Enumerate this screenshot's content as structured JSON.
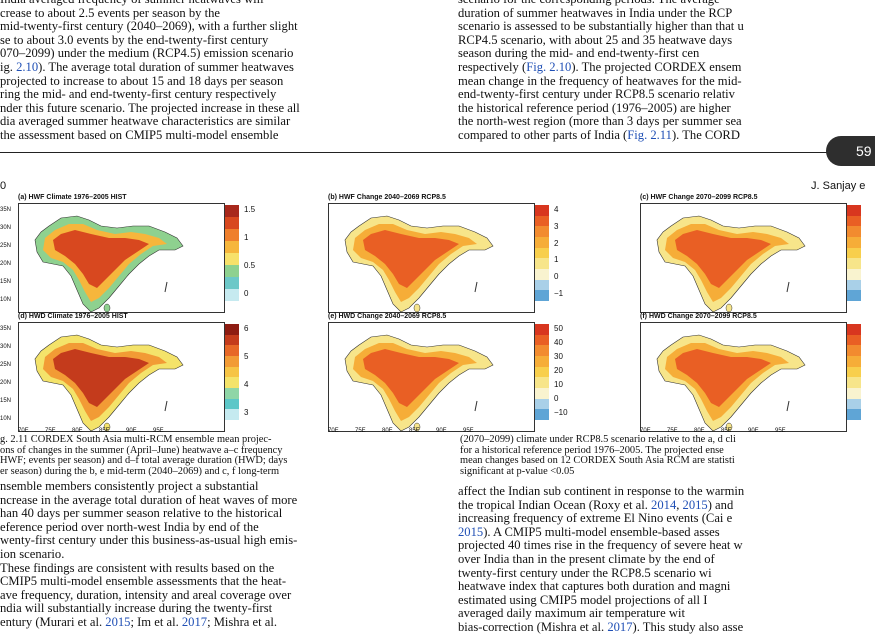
{
  "top_left_lines": [
    "India averaged frequency of summer heatwaves will",
    "crease to about 2.5 events per season by the",
    "mid-twenty-first century (2040–2069), with a further slight",
    "se to about 3.0 events by the end-twenty-first century",
    "070–2099) under the medium (RCP4.5) emission scenario",
    "ig. 2.10). The average total duration of summer heatwaves",
    "projected to increase to about 15 and 18 days per season",
    "ring the mid- and end-twenty-first century respectively",
    "nder this future scenario. The projected increase in these all",
    "dia averaged summer heatwave characteristics are similar",
    "the assessment based on CMIP5 multi-model ensemble"
  ],
  "top_right_lines": [
    "scenario for the corresponding periods. The average",
    "duration of summer heatwaves in India under the RCP",
    "scenario is assessed to be substantially higher than that u",
    "RCP4.5 scenario, with about 25 and 35 heatwave days",
    "season during the mid- and end-twenty-first cen",
    "respectively (Fig. 2.10). The projected CORDEX ensem",
    "mean change in the frequency of heatwaves for the mid-",
    "end-twenty-first century under RCP8.5 scenario relativ",
    "the historical reference period (1976–2005) are higher",
    "the north-west region (more than 3 days per summer sea",
    "compared to other parts of India (Fig. 2.11). The CORD"
  ],
  "page_number": "59",
  "running_head_left": "0",
  "running_head_right": "J. Sanjay e",
  "panels": [
    {
      "title": "(a) HWF Climate 1976–2005 HIST",
      "colorbar": [
        "1.5",
        "1",
        "0.5",
        "0"
      ],
      "colors": [
        "#a8281c",
        "#d8481f",
        "#ef7f2c",
        "#f6b63c",
        "#f7e16a",
        "#8ed18f",
        "#6cc8c8",
        "#c6eaf0"
      ]
    },
    {
      "title": "(b) HWF Change 2040–2069 RCP8.5",
      "colorbar": [
        "4",
        "3",
        "2",
        "1",
        "0",
        "−1"
      ],
      "colors": [
        "#d8361f",
        "#e95f24",
        "#f28b2f",
        "#f6ad38",
        "#f8cf4c",
        "#f7e58a",
        "#f9f3cf",
        "#a9d0e8",
        "#5fa5d6"
      ]
    },
    {
      "title": "(c) HWF Change 2070–2099 RCP8.5",
      "colorbar": [],
      "colors": [
        "#d8361f",
        "#e95f24",
        "#f28b2f",
        "#f6ad38",
        "#f8cf4c",
        "#f7e58a",
        "#f9f3cf",
        "#a9d0e8",
        "#5fa5d6"
      ]
    },
    {
      "title": "(d) HWD Climate 1976–2005 HIST",
      "colorbar": [
        "6",
        "5",
        "4",
        "3"
      ],
      "colors": [
        "#8e1c12",
        "#c43b1c",
        "#e76827",
        "#f29b35",
        "#f6c445",
        "#f4e36a",
        "#8fd6a7",
        "#5cc7c8",
        "#c5eaf0"
      ]
    },
    {
      "title": "(e) HWD Change 2040–2069 RCP8.5",
      "colorbar": [
        "50",
        "40",
        "30",
        "20",
        "10",
        "0",
        "−10"
      ],
      "colors": [
        "#d8361f",
        "#e95f24",
        "#f28b2f",
        "#f6ad38",
        "#f8cf4c",
        "#f7e58a",
        "#f9f3cf",
        "#a9d0e8",
        "#5fa5d6"
      ]
    },
    {
      "title": "(f) HWD Change 2070–2099 RCP8.5",
      "colorbar": [],
      "colors": [
        "#d8361f",
        "#e95f24",
        "#f28b2f",
        "#f6ad38",
        "#f8cf4c",
        "#f7e58a",
        "#f9f3cf",
        "#a9d0e8",
        "#5fa5d6"
      ]
    }
  ],
  "lat_labels": [
    "35N",
    "30N",
    "25N",
    "20N",
    "15N",
    "10N"
  ],
  "lon_labels": [
    "70E",
    "75E",
    "80E",
    "85E",
    "90E",
    "95E"
  ],
  "caption_left_lines": [
    "g. 2.11 CORDEX South Asia multi-RCM ensemble mean projec-",
    "ons of changes in the summer (April–June) heatwave a–c frequency",
    "HWF; events per season) and d–f total average duration (HWD; days",
    "er season) during the b, e mid-term (2040–2069) and c, f long-term"
  ],
  "caption_right_lines": [
    "(2070–2099) climate under RCP8.5 scenario relative to the a, d cli",
    "for a historical reference period 1976–2005. The projected ense",
    "mean changes based on 12 CORDEX South Asia RCM are statisti",
    "significant at p-value <0.05"
  ],
  "bottom_left_lines": [
    "nsemble members consistently project a substantial",
    "ncrease in the average total duration of heat waves of more",
    "han 40 days per summer season relative to the historical",
    "eference period over north-west India by end of the",
    "wenty-first century under this business-as-usual high emis-",
    "ion scenario.",
    "These findings are consistent with results based on the",
    "CMIP5 multi-model ensemble assessments that the heat-",
    "ave frequency, duration, intensity and areal coverage over",
    "ndia will substantially increase during the twenty-first",
    "entury (Murari et al. 2015; Im et al. 2017; Mishra et al."
  ],
  "bottom_right_lines": [
    "affect the Indian sub continent in response to the warmin",
    "the tropical Indian Ocean (Roxy et al. 2014, 2015) and",
    "increasing frequency of extreme El Nino events (Cai e",
    "2015). A CMIP5 multi-model ensemble-based asses",
    "projected 40 times rise in the frequency of severe heat w",
    "over India than in the present climate by the end of",
    "twenty-first century under the RCP8.5 scenario wi",
    "heatwave index that captures both duration and magni",
    "estimated using CMIP5 model projections of all I",
    "averaged daily maximum air temperature wit",
    "bias-correction (Mishra et al. 2017). This study also asse"
  ]
}
